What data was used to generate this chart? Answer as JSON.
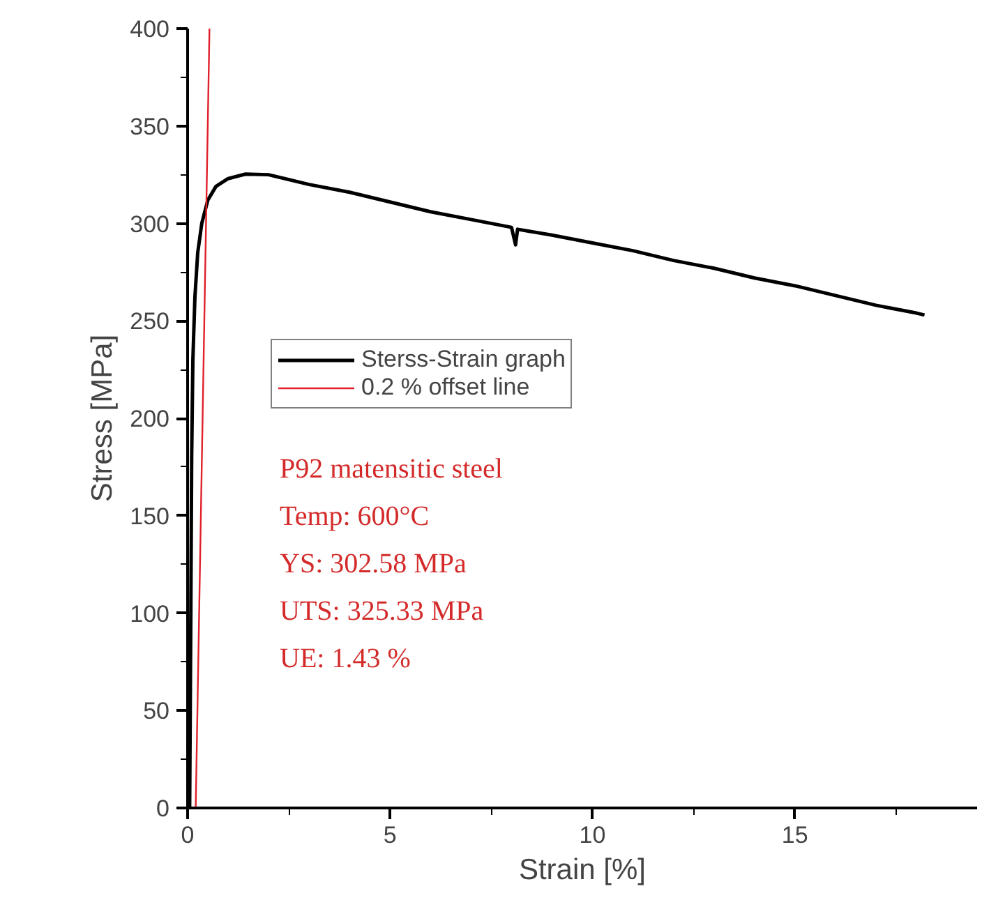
{
  "chart_data": {
    "type": "line",
    "xlabel": "Strain [%]",
    "ylabel": "Stress [MPa]",
    "xlim": [
      0,
      19.5
    ],
    "ylim": [
      0,
      400
    ],
    "xticks": [
      0,
      {
        "value": 2.5,
        "label": null
      },
      5,
      {
        "value": 7.5,
        "label": null
      },
      10,
      {
        "value": 12.5,
        "label": null
      },
      15,
      {
        "value": 17.5,
        "label": null
      }
    ],
    "yticks": [
      0,
      {
        "value": 25,
        "label": null
      },
      50,
      {
        "value": 75,
        "label": null
      },
      100,
      {
        "value": 125,
        "label": null
      },
      150,
      {
        "value": 175,
        "label": null
      },
      200,
      {
        "value": 225,
        "label": null
      },
      250,
      {
        "value": 275,
        "label": null
      },
      300,
      {
        "value": 325,
        "label": null
      },
      350,
      {
        "value": 375,
        "label": null
      },
      400
    ],
    "grid": false,
    "legend": "center",
    "line_style": "solid",
    "series": [
      {
        "name": "Sterss-Strain graph",
        "color": "#000000",
        "x": [
          0.05,
          0.08,
          0.1,
          0.13,
          0.18,
          0.25,
          0.35,
          0.5,
          0.7,
          1.0,
          1.43,
          2,
          3,
          4,
          5,
          6,
          7,
          8,
          8.1,
          8.15,
          9,
          10,
          11,
          12,
          13,
          14,
          15,
          16,
          17,
          18,
          18.2
        ],
        "values": [
          0,
          100,
          180,
          230,
          262,
          285,
          300,
          312,
          319,
          323,
          325.3,
          325,
          320,
          316,
          311,
          306,
          302,
          298,
          289,
          297,
          294,
          290,
          286,
          281,
          277,
          272,
          268,
          263,
          258,
          254,
          253
        ]
      },
      {
        "name": "0.2 % offset line",
        "color": "#e0202a",
        "x": [
          0.2,
          0.54
        ],
        "values": [
          0,
          400
        ]
      }
    ],
    "annotations": [
      "P92 matensitic steel",
      "Temp: 600°C",
      "YS: 302.58 MPa",
      "UTS: 325.33 MPa",
      "UE: 1.43 %"
    ]
  }
}
